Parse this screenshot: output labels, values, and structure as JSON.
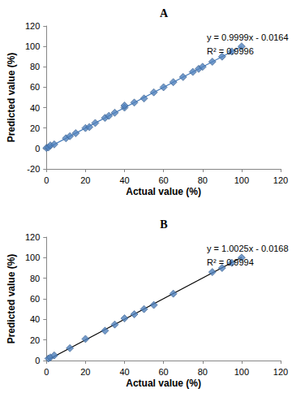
{
  "chart_data": [
    {
      "type": "scatter",
      "title": "A",
      "x_label": "Actual value (%)",
      "y_label": "Predicted value (%)",
      "x": [
        0,
        1,
        2,
        4,
        10,
        12,
        15,
        20,
        22,
        25,
        30,
        32,
        35,
        40,
        40,
        45,
        50,
        55,
        60,
        65,
        70,
        75,
        78,
        80,
        85,
        90,
        95,
        100
      ],
      "values": [
        0.5,
        1,
        3,
        4,
        10,
        12,
        15,
        20,
        21,
        25,
        30,
        32,
        35,
        40,
        42,
        45,
        49,
        55,
        60,
        65,
        70,
        75,
        78,
        80,
        85,
        90,
        95,
        100
      ],
      "color": "#4f81bd",
      "marker": "diamond",
      "xlim": [
        0,
        120
      ],
      "xticks": [
        0,
        20,
        40,
        60,
        80,
        100,
        120
      ],
      "ylim": [
        -20,
        120
      ],
      "yticks": [
        -20,
        0,
        20,
        40,
        60,
        80,
        100,
        120
      ],
      "grid": false,
      "trendline": {
        "slope": 0.9999,
        "intercept": -0.0164,
        "color": "#4a7ebb",
        "line_style": "solid"
      },
      "annotations": [
        "y = 0.9999x - 0.0164",
        "R² = 0.9996"
      ]
    },
    {
      "type": "scatter",
      "title": "B",
      "x_label": "Actual value (%)",
      "y_label": "Predicted value (%)",
      "x": [
        1,
        2,
        4,
        12,
        20,
        30,
        35,
        40,
        45,
        50,
        55,
        65,
        85,
        90,
        95,
        100
      ],
      "values": [
        2,
        3,
        5,
        12,
        21,
        29,
        35,
        41,
        45,
        50,
        54,
        65,
        86,
        90,
        95,
        100
      ],
      "color": "#4f81bd",
      "marker": "diamond",
      "xlim": [
        0,
        120
      ],
      "xticks": [
        0,
        20,
        40,
        60,
        80,
        100,
        120
      ],
      "ylim": [
        0,
        120
      ],
      "yticks": [
        0,
        20,
        40,
        60,
        80,
        100,
        120
      ],
      "grid": false,
      "trendline": {
        "slope": 1.0025,
        "intercept": -0.0168,
        "color": "#000000",
        "line_style": "solid"
      },
      "annotations": [
        "y = 1.0025x - 0.0168",
        "R² = 0.9994"
      ]
    }
  ]
}
